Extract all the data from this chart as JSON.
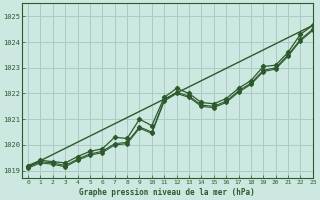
{
  "xlabel": "Graphe pression niveau de la mer (hPa)",
  "xlim": [
    -0.5,
    23
  ],
  "ylim": [
    1018.7,
    1025.5
  ],
  "yticks": [
    1019,
    1020,
    1021,
    1022,
    1023,
    1024,
    1025
  ],
  "xticks": [
    0,
    1,
    2,
    3,
    4,
    5,
    6,
    7,
    8,
    9,
    10,
    11,
    12,
    13,
    14,
    15,
    16,
    17,
    18,
    19,
    20,
    21,
    22,
    23
  ],
  "bg_color": "#cce8e0",
  "grid_color": "#aaccc4",
  "line_color": "#2d5a2d",
  "line1": [
    1019.2,
    1019.4,
    1019.35,
    1019.3,
    1019.55,
    1019.75,
    1019.85,
    1020.3,
    1020.25,
    1021.0,
    1020.75,
    1021.85,
    1022.2,
    1022.0,
    1021.65,
    1021.6,
    1021.8,
    1022.2,
    1022.5,
    1023.05,
    1023.1,
    1023.6,
    1024.3,
    1024.65
  ],
  "line2": [
    1019.15,
    1019.35,
    1019.3,
    1019.2,
    1019.45,
    1019.65,
    1019.75,
    1020.05,
    1020.1,
    1020.7,
    1020.5,
    1021.75,
    1022.05,
    1021.9,
    1021.55,
    1021.5,
    1021.7,
    1022.1,
    1022.4,
    1022.9,
    1023.0,
    1023.5,
    1024.1,
    1024.5
  ],
  "line3_x": [
    0,
    23
  ],
  "line3_y": [
    1019.15,
    1024.65
  ],
  "line4": [
    1019.1,
    1019.3,
    1019.25,
    1019.15,
    1019.4,
    1019.6,
    1019.7,
    1020.0,
    1020.05,
    1020.65,
    1020.45,
    1021.7,
    1022.0,
    1021.85,
    1021.5,
    1021.45,
    1021.65,
    1022.05,
    1022.35,
    1022.85,
    1022.95,
    1023.45,
    1024.05,
    1024.45
  ]
}
